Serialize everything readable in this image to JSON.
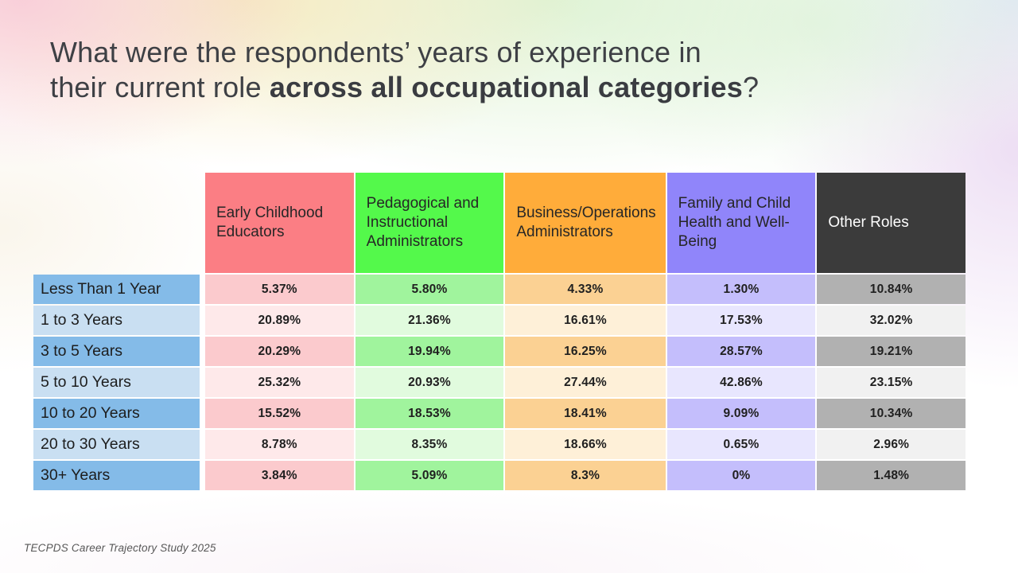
{
  "slide": {
    "title": {
      "line1": "What were the respondents’ years of experience in",
      "line2_normal": "their current role ",
      "line2_bold": "across all occupational categories",
      "suffix": "?"
    },
    "footer": "TECPDS Career Trajectory Study 2025"
  },
  "table": {
    "columns": [
      {
        "label": "Early Childhood Educators",
        "header_color": "#FB7E84",
        "tint_dark": "#FBCACD",
        "tint_light": "#FEE9EA"
      },
      {
        "label": "Pedagogical and Instructional Administrators",
        "header_color": "#54F94B",
        "tint_dark": "#A0F49D",
        "tint_light": "#E1FBDE"
      },
      {
        "label": "Business/Operations Administrators",
        "header_color": "#FFAC3A",
        "tint_dark": "#FBD193",
        "tint_light": "#FEF0D8"
      },
      {
        "label": "Family and Child Health and Well-Being",
        "header_color": "#9085FA",
        "tint_dark": "#C4BEFC",
        "tint_light": "#E8E6FE"
      },
      {
        "label": "Other Roles",
        "header_color": "#3B3B3B",
        "header_text_color": "#FFFFFF",
        "tint_dark": "#B1B1B1",
        "tint_light": "#F1F1F1"
      }
    ],
    "row_header_colors": {
      "dark": "#84BBE8",
      "light": "#C9DFF2"
    },
    "rows": [
      {
        "label": "Less Than 1 Year",
        "values": [
          "5.37%",
          "5.80%",
          "4.33%",
          "1.30%",
          "10.84%"
        ]
      },
      {
        "label": "1 to 3 Years",
        "values": [
          "20.89%",
          "21.36%",
          "16.61%",
          "17.53%",
          "32.02%"
        ]
      },
      {
        "label": "3 to 5 Years",
        "values": [
          "20.29%",
          "19.94%",
          "16.25%",
          "28.57%",
          "19.21%"
        ]
      },
      {
        "label": "5 to 10 Years",
        "values": [
          "25.32%",
          "20.93%",
          "27.44%",
          "42.86%",
          "23.15%"
        ]
      },
      {
        "label": "10 to 20 Years",
        "values": [
          "15.52%",
          "18.53%",
          "18.41%",
          "9.09%",
          "10.34%"
        ]
      },
      {
        "label": "20 to 30 Years",
        "values": [
          "8.78%",
          "8.35%",
          "18.66%",
          "0.65%",
          "2.96%"
        ]
      },
      {
        "label": "30+ Years",
        "values": [
          "3.84%",
          "5.09%",
          "8.3%",
          "0%",
          "1.48%"
        ]
      }
    ]
  },
  "chart_data": {
    "type": "table",
    "title": "What were the respondents’ years of experience in their current role across all occupational categories?",
    "unit": "%",
    "categories": [
      "Less Than 1 Year",
      "1 to 3 Years",
      "3 to 5 Years",
      "5 to 10 Years",
      "10 to 20 Years",
      "20 to 30 Years",
      "30+ Years"
    ],
    "series": [
      {
        "name": "Early Childhood Educators",
        "values": [
          5.37,
          20.89,
          20.29,
          25.32,
          15.52,
          8.78,
          3.84
        ]
      },
      {
        "name": "Pedagogical and Instructional Administrators",
        "values": [
          5.8,
          21.36,
          19.94,
          20.93,
          18.53,
          8.35,
          5.09
        ]
      },
      {
        "name": "Business/Operations Administrators",
        "values": [
          4.33,
          16.61,
          16.25,
          27.44,
          18.41,
          18.66,
          8.3
        ]
      },
      {
        "name": "Family and Child Health and Well-Being",
        "values": [
          1.3,
          17.53,
          28.57,
          42.86,
          9.09,
          0.65,
          0
        ]
      },
      {
        "name": "Other Roles",
        "values": [
          10.84,
          32.02,
          19.21,
          23.15,
          10.34,
          2.96,
          1.48
        ]
      }
    ]
  }
}
